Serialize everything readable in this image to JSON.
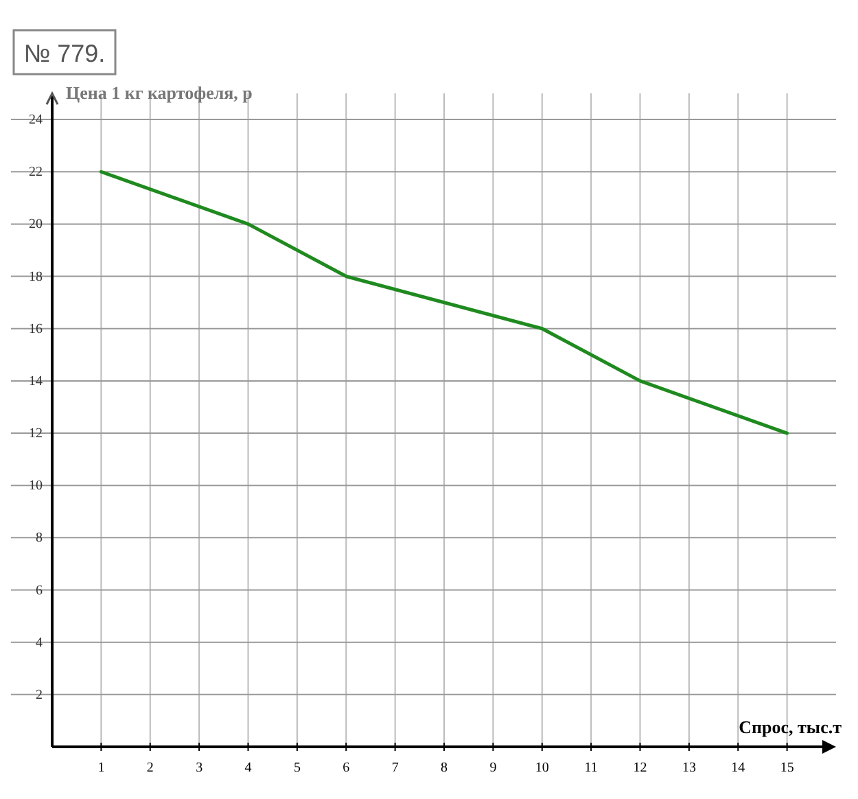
{
  "chart_data": {
    "type": "line",
    "title": "№ 779.",
    "xlabel": "Спрос, тыс.т",
    "ylabel": "Цена 1 кг картофеля, р",
    "x": [
      1,
      4,
      6,
      10,
      12,
      15
    ],
    "series": [
      {
        "color": "#1f8a1f",
        "values": [
          22,
          20,
          18,
          16,
          14,
          12
        ]
      }
    ],
    "xlim": [
      0,
      16
    ],
    "xticks": [
      1,
      2,
      3,
      4,
      5,
      6,
      7,
      8,
      9,
      10,
      11,
      12,
      13,
      14,
      15
    ],
    "ylim": [
      0,
      25
    ],
    "yticks": [
      2,
      4,
      6,
      8,
      10,
      12,
      14,
      16,
      18,
      20,
      22,
      24
    ],
    "grid": true,
    "marker": "none",
    "line_style": "solid"
  }
}
